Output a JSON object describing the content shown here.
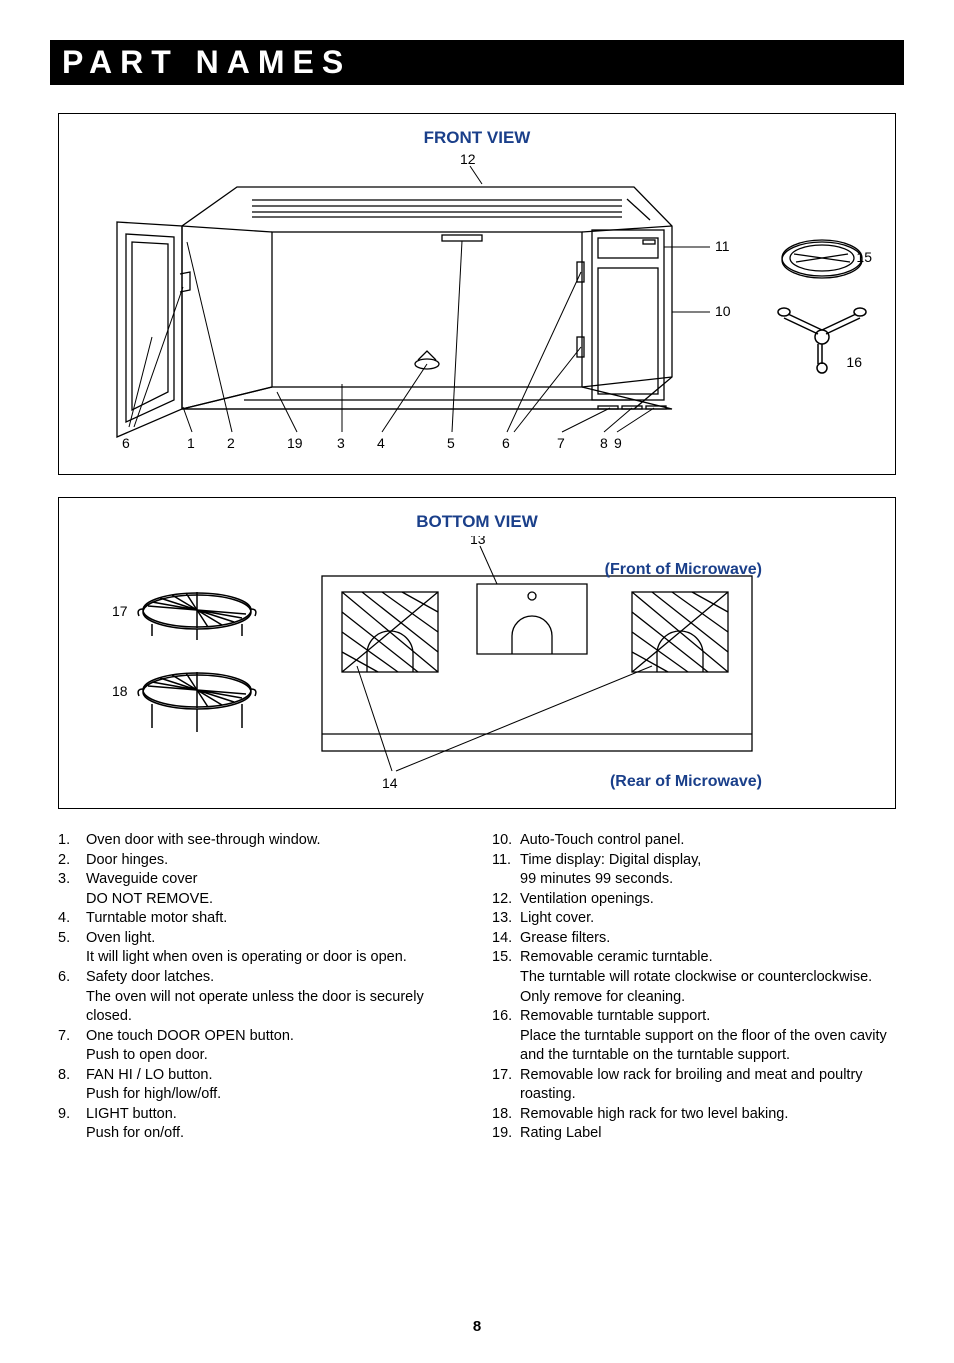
{
  "title": "PART NAMES",
  "front_view": {
    "title": "FRONT VIEW",
    "callouts": {
      "c6a": "6",
      "c1": "1",
      "c2": "2",
      "c19": "19",
      "c3": "3",
      "c4": "4",
      "c5": "5",
      "c6b": "6",
      "c7": "7",
      "c8": "8",
      "c9": "9",
      "c10": "10",
      "c11": "11",
      "c12": "12",
      "c15": "15",
      "c16": "16"
    }
  },
  "bottom_view": {
    "title": "BOTTOM VIEW",
    "front_label": "(Front of Microwave)",
    "rear_label": "(Rear of Microwave)",
    "callouts": {
      "c13": "13",
      "c14": "14",
      "c17": "17",
      "c18": "18"
    }
  },
  "parts": {
    "p1n": "1.",
    "p1t": "Oven door with see-through window.",
    "p2n": "2.",
    "p2t": "Door hinges.",
    "p3n": "3.",
    "p3t": "Waveguide cover\nDO NOT REMOVE.",
    "p4n": "4.",
    "p4t": "Turntable motor shaft.",
    "p5n": "5.",
    "p5t": "Oven light.\nIt will light when oven is operating or door is open.",
    "p6n": "6.",
    "p6t": "Safety door latches.\nThe oven will not operate unless the door is securely closed.",
    "p7n": "7.",
    "p7t": "One touch DOOR OPEN button.\nPush to open door.",
    "p8n": "8.",
    "p8t": "FAN HI / LO button.\nPush for high/low/off.",
    "p9n": "9.",
    "p9t": "LIGHT button.\nPush for on/off.",
    "p10n": "10.",
    "p10t": "Auto-Touch control panel.",
    "p11n": "11.",
    "p11t": "Time display: Digital display,\n99 minutes 99 seconds.",
    "p12n": "12.",
    "p12t": "Ventilation openings.",
    "p13n": "13.",
    "p13t": "Light cover.",
    "p14n": "14.",
    "p14t": "Grease filters.",
    "p15n": "15.",
    "p15t": "Removable ceramic turntable.\nThe turntable will rotate clockwise or counterclockwise. Only remove for cleaning.",
    "p16n": "16.",
    "p16t": "Removable turntable support.\nPlace the turntable support on the floor of the oven cavity and the turntable on the turntable support.",
    "p17n": "17.",
    "p17t": "Removable low rack for broiling and meat and poultry roasting.",
    "p18n": "18.",
    "p18t": "Removable high rack for two level baking.",
    "p19n": "19.",
    "p19t": "Rating Label"
  },
  "page_number": "8"
}
